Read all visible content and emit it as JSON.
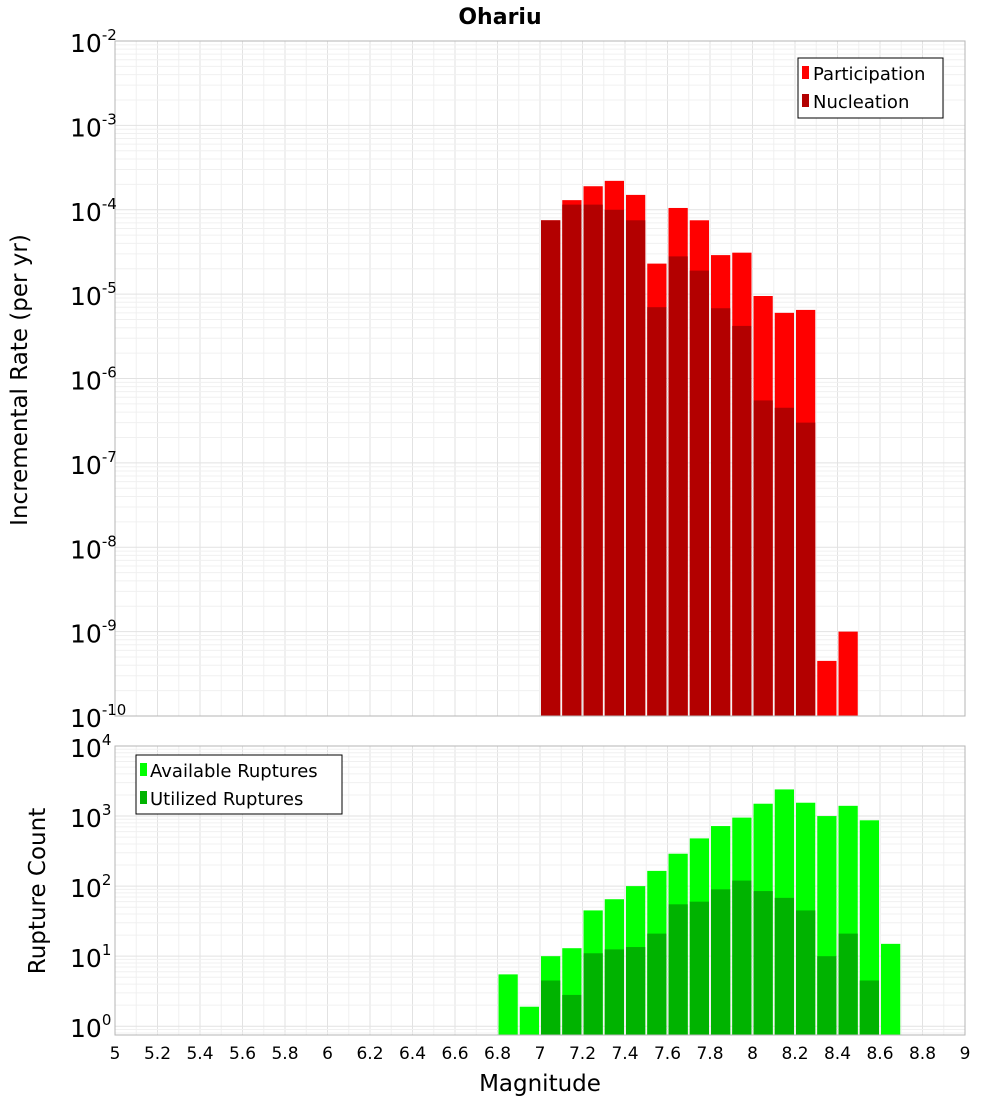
{
  "title": "Ohariu",
  "xlabel": "Magnitude",
  "x_ticks": [
    "5",
    "5.2",
    "5.4",
    "5.6",
    "5.8",
    "6",
    "6.2",
    "6.4",
    "6.6",
    "6.8",
    "7",
    "7.2",
    "7.4",
    "7.6",
    "7.8",
    "8",
    "8.2",
    "8.4",
    "8.6",
    "8.8",
    "9"
  ],
  "chart_data": [
    {
      "type": "bar",
      "ylabel": "Incremental Rate (per yr)",
      "yscale": "log",
      "ylim": [
        1e-10,
        0.01
      ],
      "y_ticks": [
        {
          "base": "10",
          "exp": "-10"
        },
        {
          "base": "10",
          "exp": "-9"
        },
        {
          "base": "10",
          "exp": "-8"
        },
        {
          "base": "10",
          "exp": "-7"
        },
        {
          "base": "10",
          "exp": "-6"
        },
        {
          "base": "10",
          "exp": "-5"
        },
        {
          "base": "10",
          "exp": "-4"
        },
        {
          "base": "10",
          "exp": "-3"
        },
        {
          "base": "10",
          "exp": "-2"
        }
      ],
      "xlim": [
        5,
        9
      ],
      "grid": true,
      "legend_position": "top-right",
      "x": [
        7.05,
        7.15,
        7.25,
        7.35,
        7.45,
        7.55,
        7.65,
        7.75,
        7.85,
        7.95,
        8.05,
        8.15,
        8.25,
        8.35,
        8.45
      ],
      "series": [
        {
          "name": "Participation",
          "color": "#ff0000",
          "values": [
            7.5e-05,
            0.00013,
            0.00019,
            0.00022,
            0.00015,
            2.3e-05,
            0.000105,
            7.5e-05,
            2.9e-05,
            3.1e-05,
            9.5e-06,
            6e-06,
            6.5e-06,
            4.5e-10,
            1e-09
          ]
        },
        {
          "name": "Nucleation",
          "color": "#b30000",
          "values": [
            7.5e-05,
            0.000115,
            0.000115,
            0.0001,
            7.5e-05,
            7e-06,
            2.8e-05,
            1.9e-05,
            6.8e-06,
            4.2e-06,
            5.5e-07,
            4.5e-07,
            3e-07,
            null,
            null
          ]
        }
      ]
    },
    {
      "type": "bar",
      "ylabel": "Rupture Count",
      "yscale": "log",
      "ylim": [
        0.75,
        10000.0
      ],
      "y_ticks": [
        {
          "base": "10",
          "exp": "0"
        },
        {
          "base": "10",
          "exp": "1"
        },
        {
          "base": "10",
          "exp": "2"
        },
        {
          "base": "10",
          "exp": "3"
        },
        {
          "base": "10",
          "exp": "4"
        }
      ],
      "xlim": [
        5,
        9
      ],
      "grid": true,
      "legend_position": "top-left",
      "x": [
        6.85,
        6.95,
        7.05,
        7.15,
        7.25,
        7.35,
        7.45,
        7.55,
        7.65,
        7.75,
        7.85,
        7.95,
        8.05,
        8.15,
        8.25,
        8.35,
        8.45,
        8.55,
        8.65
      ],
      "series": [
        {
          "name": "Available Ruptures",
          "color": "#00ff00",
          "values": [
            5.5,
            1.9,
            10,
            13,
            45,
            65,
            100,
            165,
            290,
            480,
            720,
            950,
            1500,
            2400,
            1550,
            1000,
            1400,
            870,
            15
          ]
        },
        {
          "name": "Utilized Ruptures",
          "color": "#00b300",
          "values": [
            null,
            null,
            4.5,
            2.8,
            11,
            12.5,
            13.5,
            21,
            55,
            60,
            90,
            120,
            85,
            68,
            45,
            10,
            21,
            4.5,
            null
          ]
        }
      ]
    }
  ]
}
